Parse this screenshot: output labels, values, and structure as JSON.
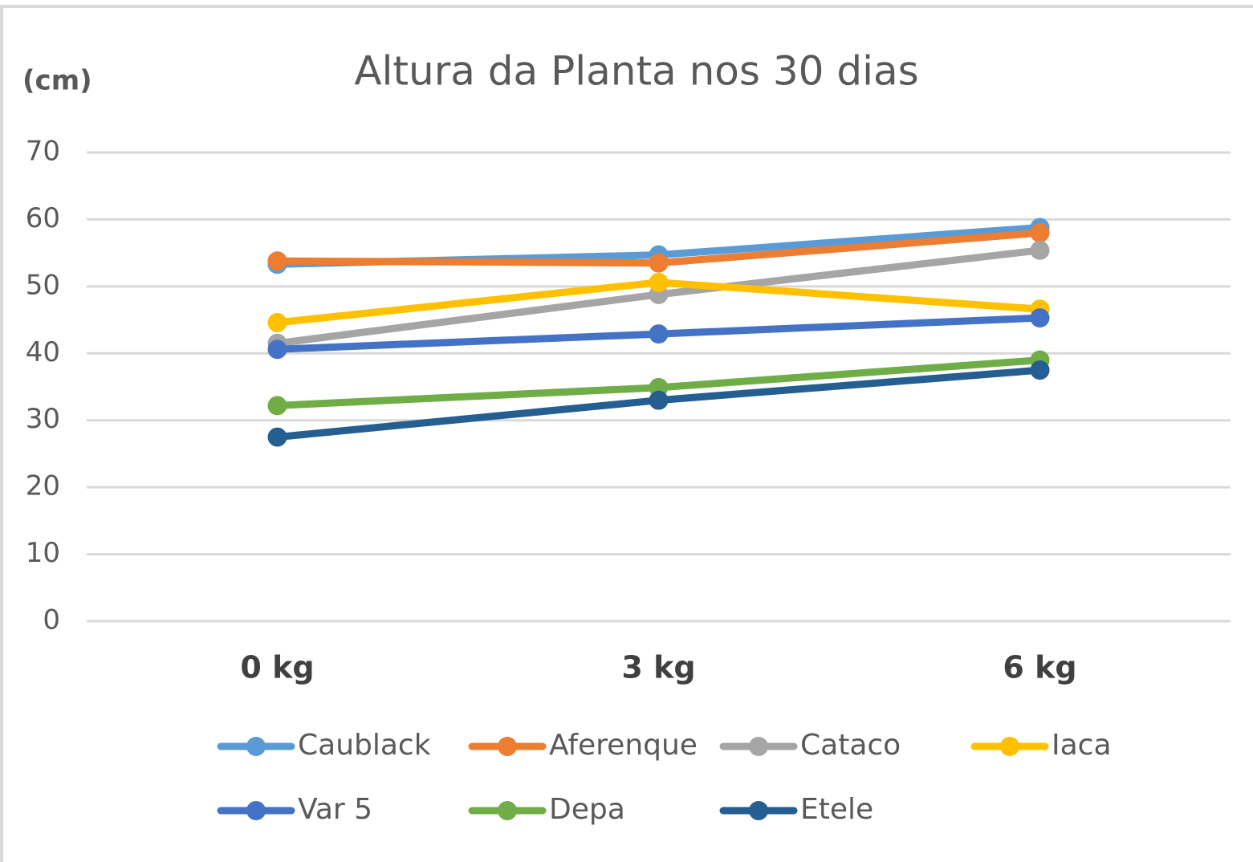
{
  "chart_data": {
    "type": "line",
    "title": "Altura da Planta nos 30 dias",
    "y_label": "(cm)",
    "categories": [
      "0 kg",
      "3 kg",
      "6 kg"
    ],
    "series": [
      {
        "name": "Caublack",
        "color": "#5b9bd5",
        "values": [
          53.3,
          54.7,
          58.8
        ]
      },
      {
        "name": "Aferenque",
        "color": "#ed7d31",
        "values": [
          53.8,
          53.5,
          58.0
        ]
      },
      {
        "name": "Cataco",
        "color": "#a5a5a5",
        "values": [
          41.5,
          48.8,
          55.4
        ]
      },
      {
        "name": "Iaca",
        "color": "#ffc000",
        "values": [
          44.6,
          50.6,
          46.6
        ]
      },
      {
        "name": "Var 5",
        "color": "#4472c4",
        "values": [
          40.6,
          42.9,
          45.3
        ]
      },
      {
        "name": "Depa",
        "color": "#70ad47",
        "values": [
          32.2,
          34.9,
          39.0
        ]
      },
      {
        "name": "Etele",
        "color": "#255e91",
        "values": [
          27.5,
          33.0,
          37.5
        ]
      }
    ],
    "ylim": [
      0,
      70
    ],
    "yticks": [
      0,
      10,
      20,
      30,
      40,
      50,
      60,
      70
    ],
    "grid": true
  }
}
